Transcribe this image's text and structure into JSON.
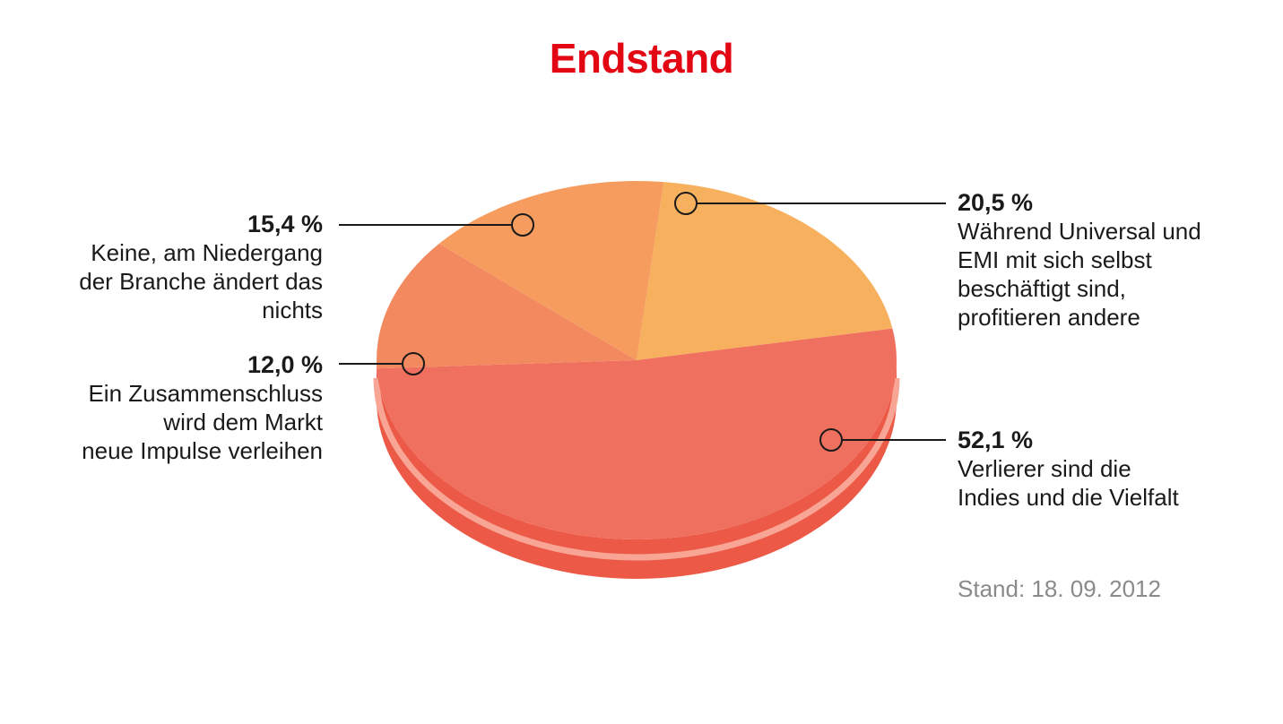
{
  "title": "Endstand",
  "title_color": "#e30613",
  "note": "Stand: 18. 09. 2012",
  "chart_data": {
    "type": "pie",
    "title": "Endstand",
    "slices": [
      {
        "value": 20.5,
        "value_label": "20,5 %",
        "description": "Während Universal und\nEMI mit sich selbst\nbeschäftigt sind,\nprofitieren andere",
        "color": "#f7b05e"
      },
      {
        "value": 52.1,
        "value_label": "52,1 %",
        "description": "Verlierer sind die\nIndies und die Vielfalt",
        "color": "#f07060"
      },
      {
        "value": 12.0,
        "value_label": "12,0 %",
        "description": "Ein Zusammenschluss\nwird dem Markt\nneue Impulse verleihen",
        "color": "#f3895e"
      },
      {
        "value": 15.4,
        "value_label": "15,4 %",
        "description": "Keine, am Niedergang\nder Branche ändert das\nnichts",
        "color": "#f59c5e"
      }
    ],
    "side_color": "#ec5a47",
    "rim_color": "#f8a596"
  }
}
